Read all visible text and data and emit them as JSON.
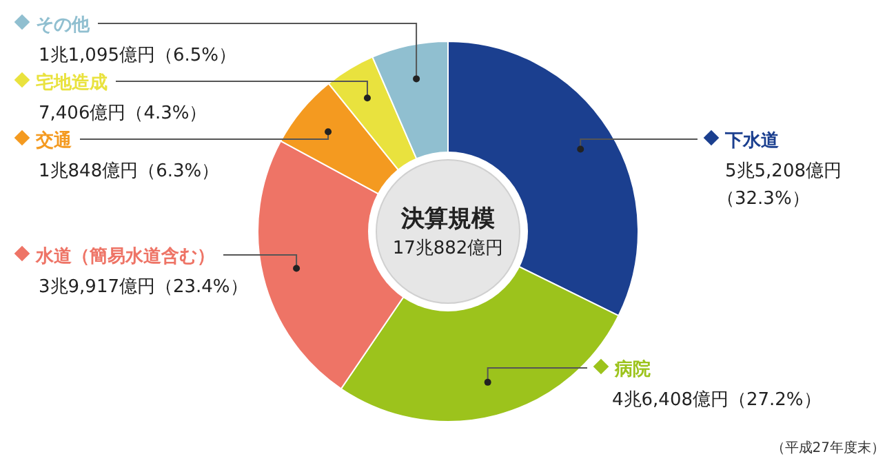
{
  "chart_data": {
    "type": "donut",
    "title": "決算規模",
    "subtitle": "17兆882億円",
    "categories": [
      "下水道",
      "病院",
      "水道（簡易水道含む）",
      "交通",
      "宅地造成",
      "その他"
    ],
    "values": [
      32.3,
      27.2,
      23.4,
      6.3,
      4.3,
      6.5
    ],
    "legend": "left",
    "colors": [
      "#1b3f8f",
      "#9cc31c",
      "#ee7466",
      "#f49a20",
      "#e9e23e",
      "#90bfd0"
    ],
    "value_labels": [
      "5兆5,208億円（32.3%）",
      "4兆6,408億円（27.2%）",
      "3兆9,917億円（23.4%）",
      "1兆848億円（6.3%）",
      "7,406億円（4.3%）",
      "1兆1,095億円（6.5%）"
    ],
    "annotations": [
      "（平成27年度末）"
    ]
  }
}
